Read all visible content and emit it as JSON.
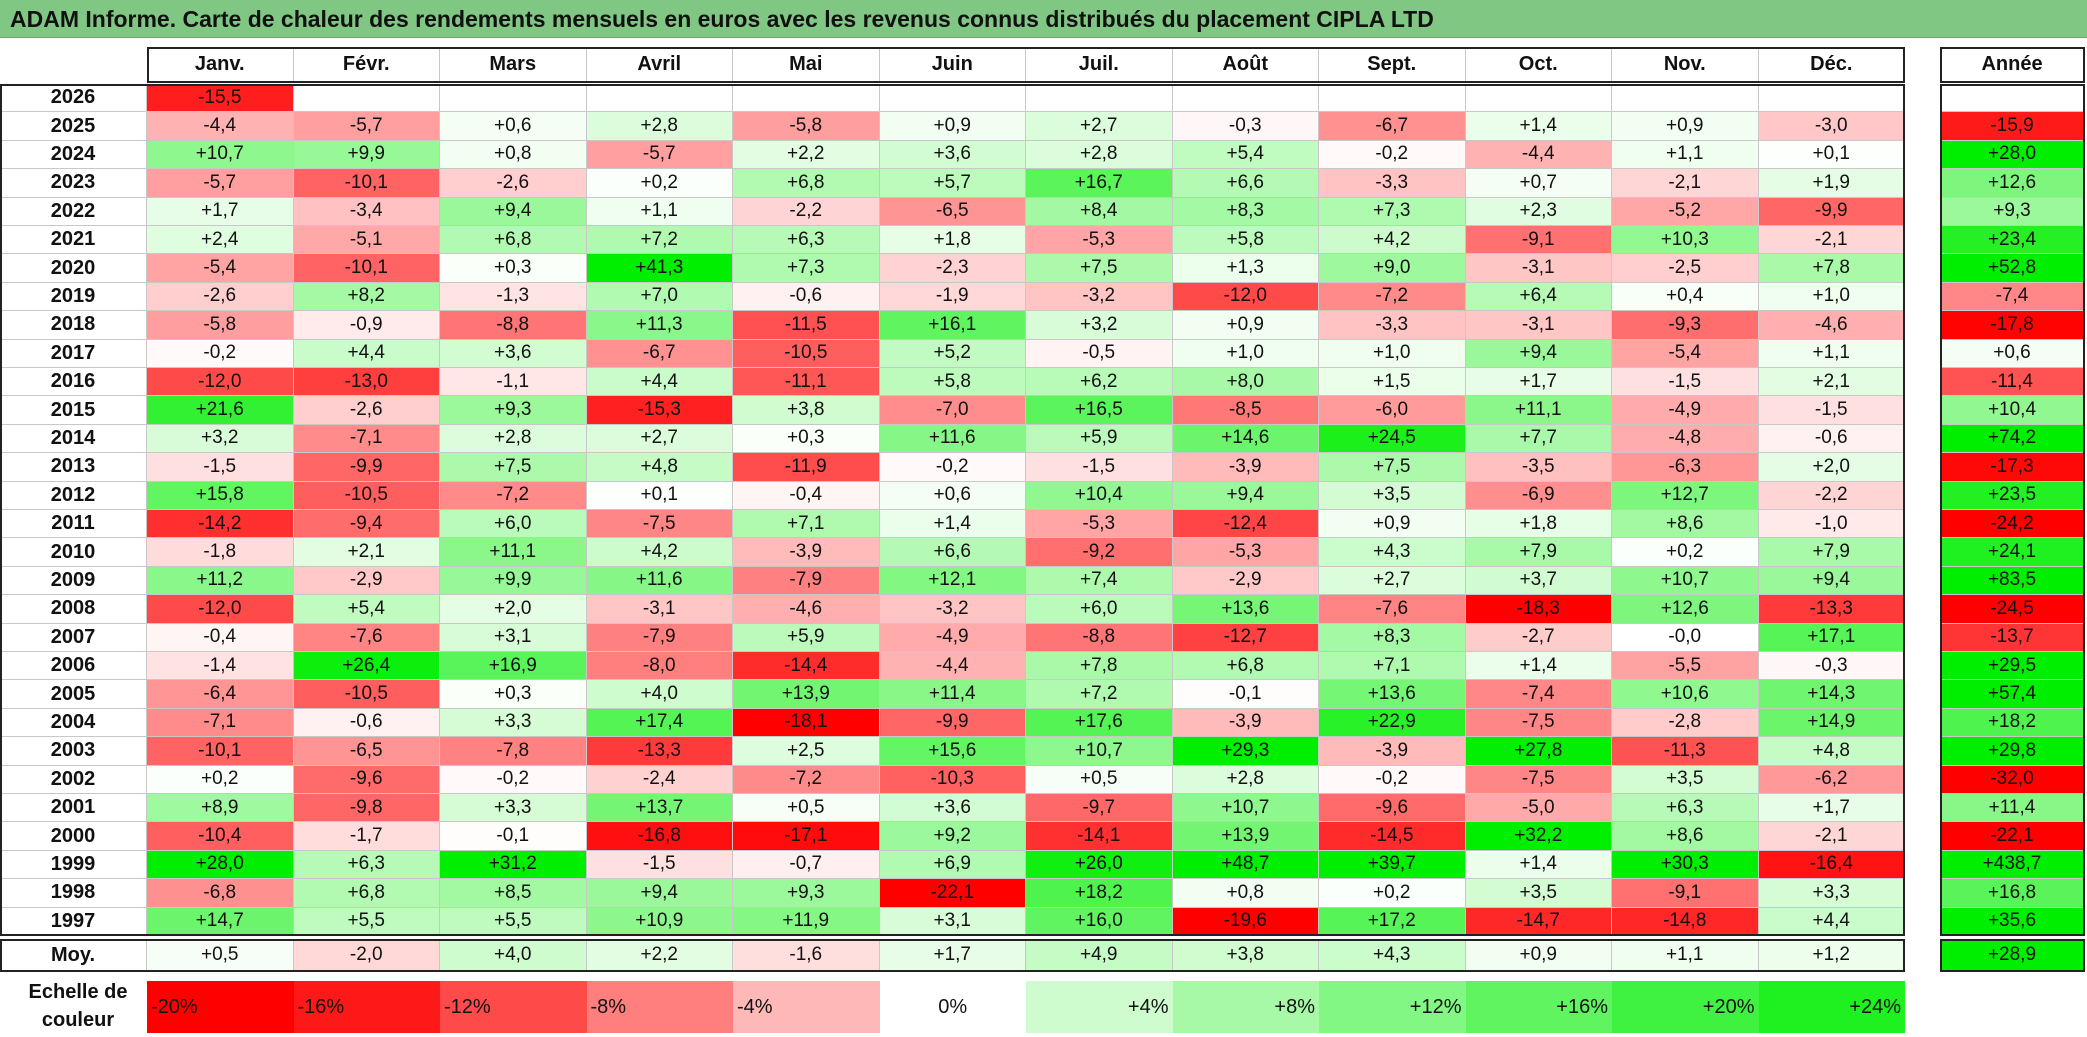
{
  "title": "ADAM Informe. Carte de chaleur des rendements mensuels en euros avec les revenus connus distribués du placement CIPLA LTD",
  "chart_data": {
    "type": "heatmap",
    "columns": [
      "Janv.",
      "Févr.",
      "Mars",
      "Avril",
      "Mai",
      "Juin",
      "Juil.",
      "Août",
      "Sept.",
      "Oct.",
      "Nov.",
      "Déc."
    ],
    "year_column_label": "Année",
    "rows": [
      {
        "year": "2026",
        "months": [
          "-15,5",
          "",
          "",
          "",
          "",
          "",
          "",
          "",
          "",
          "",
          "",
          ""
        ],
        "annual": ""
      },
      {
        "year": "2025",
        "months": [
          "-4,4",
          "-5,7",
          "+0,6",
          "+2,8",
          "-5,8",
          "+0,9",
          "+2,7",
          "-0,3",
          "-6,7",
          "+1,4",
          "+0,9",
          "-3,0"
        ],
        "annual": "-15,9"
      },
      {
        "year": "2024",
        "months": [
          "+10,7",
          "+9,9",
          "+0,8",
          "-5,7",
          "+2,2",
          "+3,6",
          "+2,8",
          "+5,4",
          "-0,2",
          "-4,4",
          "+1,1",
          "+0,1"
        ],
        "annual": "+28,0"
      },
      {
        "year": "2023",
        "months": [
          "-5,7",
          "-10,1",
          "-2,6",
          "+0,2",
          "+6,8",
          "+5,7",
          "+16,7",
          "+6,6",
          "-3,3",
          "+0,7",
          "-2,1",
          "+1,9"
        ],
        "annual": "+12,6"
      },
      {
        "year": "2022",
        "months": [
          "+1,7",
          "-3,4",
          "+9,4",
          "+1,1",
          "-2,2",
          "-6,5",
          "+8,4",
          "+8,3",
          "+7,3",
          "+2,3",
          "-5,2",
          "-9,9"
        ],
        "annual": "+9,3"
      },
      {
        "year": "2021",
        "months": [
          "+2,4",
          "-5,1",
          "+6,8",
          "+7,2",
          "+6,3",
          "+1,8",
          "-5,3",
          "+5,8",
          "+4,2",
          "-9,1",
          "+10,3",
          "-2,1"
        ],
        "annual": "+23,4"
      },
      {
        "year": "2020",
        "months": [
          "-5,4",
          "-10,1",
          "+0,3",
          "+41,3",
          "+7,3",
          "-2,3",
          "+7,5",
          "+1,3",
          "+9,0",
          "-3,1",
          "-2,5",
          "+7,8"
        ],
        "annual": "+52,8"
      },
      {
        "year": "2019",
        "months": [
          "-2,6",
          "+8,2",
          "-1,3",
          "+7,0",
          "-0,6",
          "-1,9",
          "-3,2",
          "-12,0",
          "-7,2",
          "+6,4",
          "+0,4",
          "+1,0"
        ],
        "annual": "-7,4"
      },
      {
        "year": "2018",
        "months": [
          "-5,8",
          "-0,9",
          "-8,8",
          "+11,3",
          "-11,5",
          "+16,1",
          "+3,2",
          "+0,9",
          "-3,3",
          "-3,1",
          "-9,3",
          "-4,6"
        ],
        "annual": "-17,8"
      },
      {
        "year": "2017",
        "months": [
          "-0,2",
          "+4,4",
          "+3,6",
          "-6,7",
          "-10,5",
          "+5,2",
          "-0,5",
          "+1,0",
          "+1,0",
          "+9,4",
          "-5,4",
          "+1,1"
        ],
        "annual": "+0,6"
      },
      {
        "year": "2016",
        "months": [
          "-12,0",
          "-13,0",
          "-1,1",
          "+4,4",
          "-11,1",
          "+5,8",
          "+6,2",
          "+8,0",
          "+1,5",
          "+1,7",
          "-1,5",
          "+2,1"
        ],
        "annual": "-11,4"
      },
      {
        "year": "2015",
        "months": [
          "+21,6",
          "-2,6",
          "+9,3",
          "-15,3",
          "+3,8",
          "-7,0",
          "+16,5",
          "-8,5",
          "-6,0",
          "+11,1",
          "-4,9",
          "-1,5"
        ],
        "annual": "+10,4"
      },
      {
        "year": "2014",
        "months": [
          "+3,2",
          "-7,1",
          "+2,8",
          "+2,7",
          "+0,3",
          "+11,6",
          "+5,9",
          "+14,6",
          "+24,5",
          "+7,7",
          "-4,8",
          "-0,6"
        ],
        "annual": "+74,2"
      },
      {
        "year": "2013",
        "months": [
          "-1,5",
          "-9,9",
          "+7,5",
          "+4,8",
          "-11,9",
          "-0,2",
          "-1,5",
          "-3,9",
          "+7,5",
          "-3,5",
          "-6,3",
          "+2,0"
        ],
        "annual": "-17,3"
      },
      {
        "year": "2012",
        "months": [
          "+15,8",
          "-10,5",
          "-7,2",
          "+0,1",
          "-0,4",
          "+0,6",
          "+10,4",
          "+9,4",
          "+3,5",
          "-6,9",
          "+12,7",
          "-2,2"
        ],
        "annual": "+23,5"
      },
      {
        "year": "2011",
        "months": [
          "-14,2",
          "-9,4",
          "+6,0",
          "-7,5",
          "+7,1",
          "+1,4",
          "-5,3",
          "-12,4",
          "+0,9",
          "+1,8",
          "+8,6",
          "-1,0"
        ],
        "annual": "-24,2"
      },
      {
        "year": "2010",
        "months": [
          "-1,8",
          "+2,1",
          "+11,1",
          "+4,2",
          "-3,9",
          "+6,6",
          "-9,2",
          "-5,3",
          "+4,3",
          "+7,9",
          "+0,2",
          "+7,9"
        ],
        "annual": "+24,1"
      },
      {
        "year": "2009",
        "months": [
          "+11,2",
          "-2,9",
          "+9,9",
          "+11,6",
          "-7,9",
          "+12,1",
          "+7,4",
          "-2,9",
          "+2,7",
          "+3,7",
          "+10,7",
          "+9,4"
        ],
        "annual": "+83,5"
      },
      {
        "year": "2008",
        "months": [
          "-12,0",
          "+5,4",
          "+2,0",
          "-3,1",
          "-4,6",
          "-3,2",
          "+6,0",
          "+13,6",
          "-7,6",
          "-18,3",
          "+12,6",
          "-13,3"
        ],
        "annual": "-24,5"
      },
      {
        "year": "2007",
        "months": [
          "-0,4",
          "-7,6",
          "+3,1",
          "-7,9",
          "+5,9",
          "-4,9",
          "-8,8",
          "-12,7",
          "+8,3",
          "-2,7",
          "-0,0",
          "+17,1"
        ],
        "annual": "-13,7"
      },
      {
        "year": "2006",
        "months": [
          "-1,4",
          "+26,4",
          "+16,9",
          "-8,0",
          "-14,4",
          "-4,4",
          "+7,8",
          "+6,8",
          "+7,1",
          "+1,4",
          "-5,5",
          "-0,3"
        ],
        "annual": "+29,5"
      },
      {
        "year": "2005",
        "months": [
          "-6,4",
          "-10,5",
          "+0,3",
          "+4,0",
          "+13,9",
          "+11,4",
          "+7,2",
          "-0,1",
          "+13,6",
          "-7,4",
          "+10,6",
          "+14,3"
        ],
        "annual": "+57,4"
      },
      {
        "year": "2004",
        "months": [
          "-7,1",
          "-0,6",
          "+3,3",
          "+17,4",
          "-18,1",
          "-9,9",
          "+17,6",
          "-3,9",
          "+22,9",
          "-7,5",
          "-2,8",
          "+14,9"
        ],
        "annual": "+18,2"
      },
      {
        "year": "2003",
        "months": [
          "-10,1",
          "-6,5",
          "-7,8",
          "-13,3",
          "+2,5",
          "+15,6",
          "+10,7",
          "+29,3",
          "-3,9",
          "+27,8",
          "-11,3",
          "+4,8"
        ],
        "annual": "+29,8"
      },
      {
        "year": "2002",
        "months": [
          "+0,2",
          "-9,6",
          "-0,2",
          "-2,4",
          "-7,2",
          "-10,3",
          "+0,5",
          "+2,8",
          "-0,2",
          "-7,5",
          "+3,5",
          "-6,2"
        ],
        "annual": "-32,0"
      },
      {
        "year": "2001",
        "months": [
          "+8,9",
          "-9,8",
          "+3,3",
          "+13,7",
          "+0,5",
          "+3,6",
          "-9,7",
          "+10,7",
          "-9,6",
          "-5,0",
          "+6,3",
          "+1,7"
        ],
        "annual": "+11,4"
      },
      {
        "year": "2000",
        "months": [
          "-10,4",
          "-1,7",
          "-0,1",
          "-16,8",
          "-17,1",
          "+9,2",
          "-14,1",
          "+13,9",
          "-14,5",
          "+32,2",
          "+8,6",
          "-2,1"
        ],
        "annual": "-22,1"
      },
      {
        "year": "1999",
        "months": [
          "+28,0",
          "+6,3",
          "+31,2",
          "-1,5",
          "-0,7",
          "+6,9",
          "+26,0",
          "+48,7",
          "+39,7",
          "+1,4",
          "+30,3",
          "-16,4"
        ],
        "annual": "+438,7"
      },
      {
        "year": "1998",
        "months": [
          "-6,8",
          "+6,8",
          "+8,5",
          "+9,4",
          "+9,3",
          "-22,1",
          "+18,2",
          "+0,8",
          "+0,2",
          "+3,5",
          "-9,1",
          "+3,3"
        ],
        "annual": "+16,8"
      },
      {
        "year": "1997",
        "months": [
          "+14,7",
          "+5,5",
          "+5,5",
          "+10,9",
          "+11,9",
          "+3,1",
          "+16,0",
          "-19,6",
          "+17,2",
          "-14,7",
          "-14,8",
          "+4,4"
        ],
        "annual": "+35,6"
      }
    ],
    "average": {
      "label": "Moy.",
      "months": [
        "+0,5",
        "-2,0",
        "+4,0",
        "+2,2",
        "-1,6",
        "+1,7",
        "+4,9",
        "+3,8",
        "+4,3",
        "+0,9",
        "+1,1",
        "+1,2"
      ],
      "annual": "+28,9"
    },
    "scale": {
      "label": "Echelle de couleur",
      "steps": [
        "-20%",
        "-16%",
        "-12%",
        "-8%",
        "-4%",
        "0%",
        "+4%",
        "+8%",
        "+12%",
        "+16%",
        "+20%",
        "+24%"
      ]
    },
    "colors": {
      "negative_max": "#ff0000",
      "neutral": "#ffffff",
      "positive_max": "#00ee00",
      "title_bg": "#81c784"
    }
  }
}
